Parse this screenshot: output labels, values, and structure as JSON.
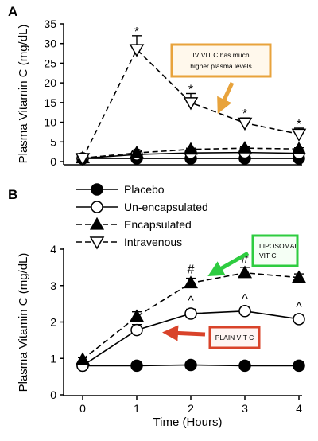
{
  "chart_data": [
    {
      "panel": "A",
      "type": "line",
      "ylabel": "Plasma Vitamin C (mg/dL)",
      "xlabel": "",
      "x": [
        0,
        1,
        2,
        3,
        4
      ],
      "ylim": [
        0,
        35
      ],
      "yticks": [
        "0",
        "5",
        "10",
        "15",
        "20",
        "25",
        "30",
        "35"
      ],
      "series": [
        {
          "key": "placebo",
          "values": [
            0.8,
            0.8,
            0.8,
            0.8,
            0.8
          ],
          "errors": [
            0.2,
            0.2,
            0.2,
            0.2,
            0.2
          ],
          "marker": "filled-circle",
          "line": "solid"
        },
        {
          "key": "unencapsulated",
          "values": [
            0.8,
            1.8,
            2.2,
            2.3,
            2.1
          ],
          "errors": [
            0.2,
            0.3,
            0.3,
            0.3,
            0.3
          ],
          "marker": "open-circle",
          "line": "solid"
        },
        {
          "key": "encapsulated",
          "values": [
            0.9,
            2.2,
            3.1,
            3.4,
            3.2
          ],
          "errors": [
            0.2,
            0.3,
            0.3,
            0.3,
            0.3
          ],
          "marker": "filled-triangle-up",
          "line": "dashed"
        },
        {
          "key": "intravenous",
          "values": [
            0.8,
            28.5,
            15.0,
            9.8,
            7.0
          ],
          "errors": [
            0.2,
            3.5,
            2.3,
            1.3,
            1.5
          ],
          "marker": "open-triangle-down",
          "line": "dashed"
        }
      ],
      "significance": [
        {
          "x": 1,
          "symbol": "*"
        },
        {
          "x": 2,
          "symbol": "*"
        },
        {
          "x": 3,
          "symbol": "*"
        },
        {
          "x": 4,
          "symbol": "*"
        }
      ],
      "annotation": {
        "lines": [
          "IV VIT C has much",
          "higher plasma levels"
        ],
        "color": "#e8a33c"
      }
    },
    {
      "panel": "B",
      "type": "line",
      "ylabel": "Plasma Vitamin C (mg/dL)",
      "xlabel": "Time (Hours)",
      "x": [
        0,
        1,
        2,
        3,
        4
      ],
      "xticks": [
        "0",
        "1",
        "2",
        "3",
        "4"
      ],
      "ylim": [
        0,
        4
      ],
      "yticks": [
        "0",
        "1",
        "2",
        "3",
        "4"
      ],
      "legend": [
        "Placebo",
        "Un-encapsulated",
        "Encapsulated",
        "Intravenous"
      ],
      "series": [
        {
          "key": "placebo",
          "values": [
            0.8,
            0.8,
            0.82,
            0.8,
            0.8
          ],
          "errors": [
            0.04,
            0.04,
            0.04,
            0.04,
            0.04
          ],
          "marker": "filled-circle",
          "line": "solid"
        },
        {
          "key": "unencapsulated",
          "values": [
            0.8,
            1.78,
            2.23,
            2.3,
            2.08
          ],
          "errors": [
            0.05,
            0.15,
            0.12,
            0.1,
            0.1
          ],
          "marker": "open-circle",
          "line": "solid"
        },
        {
          "key": "encapsulated",
          "values": [
            0.97,
            2.15,
            3.07,
            3.35,
            3.22
          ],
          "errors": [
            0.05,
            0.13,
            0.13,
            0.15,
            0.1
          ],
          "marker": "filled-triangle-up",
          "line": "dashed"
        }
      ],
      "significance": [
        {
          "x": 2,
          "symbol": "#",
          "series": "encapsulated"
        },
        {
          "x": 3,
          "symbol": "#",
          "series": "encapsulated"
        },
        {
          "x": 2,
          "symbol": "^",
          "series": "unencapsulated"
        },
        {
          "x": 3,
          "symbol": "^",
          "series": "unencapsulated"
        },
        {
          "x": 4,
          "symbol": "^",
          "series": "unencapsulated"
        }
      ],
      "annotations": [
        {
          "lines": [
            "LIPOSOMAL",
            "VIT C"
          ],
          "color": "#2ecc40"
        },
        {
          "lines": [
            "PLAIN VIT C"
          ],
          "color": "#d9432a"
        }
      ]
    }
  ]
}
